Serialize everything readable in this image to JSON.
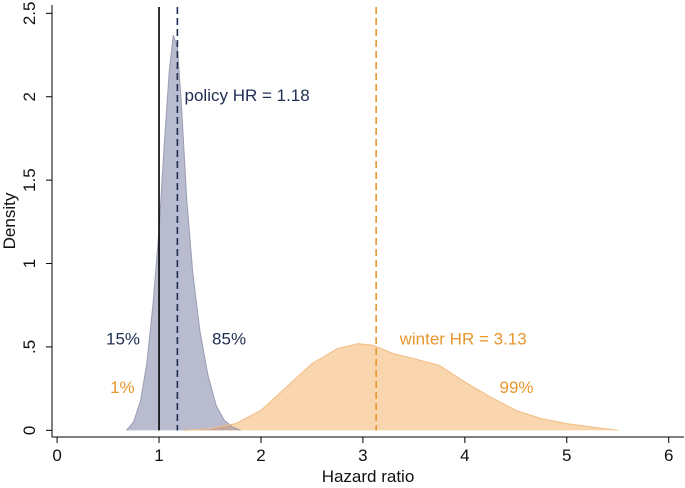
{
  "chart_data": {
    "type": "area",
    "xlabel": "Hazard ratio",
    "ylabel": "Density",
    "xlim": [
      -0.05,
      6.15
    ],
    "ylim": [
      -0.04,
      2.55
    ],
    "x_ticks": [
      {
        "value": 0,
        "label": "0"
      },
      {
        "value": 1,
        "label": "1"
      },
      {
        "value": 2,
        "label": "2"
      },
      {
        "value": 3,
        "label": "3"
      },
      {
        "value": 4,
        "label": "4"
      },
      {
        "value": 5,
        "label": "5"
      },
      {
        "value": 6,
        "label": "6"
      }
    ],
    "y_ticks": [
      {
        "value": 0,
        "label": "0"
      },
      {
        "value": 0.5,
        "label": ".5"
      },
      {
        "value": 1,
        "label": "1"
      },
      {
        "value": 1.5,
        "label": "1.5"
      },
      {
        "value": 2,
        "label": "2"
      },
      {
        "value": 2.5,
        "label": "2.5"
      }
    ],
    "grid": false,
    "colors": {
      "policy_fill": "#b9bccf",
      "policy_line": "#1f2d52",
      "winter_fill": "#f9d6ad",
      "winter_line": "#e8962e",
      "overlap_fill": "#c4a8a0"
    },
    "series": [
      {
        "key": "policy",
        "x": [
          0.68,
          0.75,
          0.82,
          0.88,
          0.94,
          1.0,
          1.05,
          1.1,
          1.14,
          1.18,
          1.22,
          1.27,
          1.33,
          1.4,
          1.48,
          1.56,
          1.64,
          1.72,
          1.8
        ],
        "y": [
          0.0,
          0.05,
          0.18,
          0.4,
          0.75,
          1.2,
          1.7,
          2.15,
          2.37,
          2.3,
          1.95,
          1.4,
          0.95,
          0.6,
          0.33,
          0.15,
          0.06,
          0.02,
          0.0
        ]
      },
      {
        "key": "winter",
        "x": [
          1.25,
          1.5,
          1.75,
          2.0,
          2.25,
          2.5,
          2.75,
          2.95,
          3.1,
          3.3,
          3.5,
          3.75,
          4.0,
          4.25,
          4.5,
          4.75,
          5.0,
          5.25,
          5.5
        ],
        "y": [
          0.0,
          0.01,
          0.04,
          0.12,
          0.26,
          0.4,
          0.49,
          0.52,
          0.51,
          0.46,
          0.43,
          0.39,
          0.29,
          0.2,
          0.12,
          0.07,
          0.04,
          0.02,
          0.0
        ]
      }
    ],
    "reference_lines": [
      {
        "key": "null",
        "x": 1.0,
        "style": "solid",
        "color": "#000000"
      },
      {
        "key": "policy_hr",
        "x": 1.18,
        "style": "dashed",
        "color": "#1f2d52"
      },
      {
        "key": "winter_hr",
        "x": 3.13,
        "style": "dashed",
        "color": "#e8962e"
      }
    ],
    "annotations": [
      {
        "key": "policy_hr_label",
        "text": "policy HR = 1.18",
        "x": 1.25,
        "y": 2.0,
        "color": "#1f2d52",
        "anchor": "start"
      },
      {
        "key": "policy_left",
        "text": "15%",
        "x": 0.48,
        "y": 0.54,
        "color": "#1f2d52",
        "anchor": "start"
      },
      {
        "key": "policy_right",
        "text": "85%",
        "x": 1.52,
        "y": 0.54,
        "color": "#1f2d52",
        "anchor": "start"
      },
      {
        "key": "winter_hr_label",
        "text": "winter HR = 3.13",
        "x": 3.36,
        "y": 0.54,
        "color": "#e8962e",
        "anchor": "start"
      },
      {
        "key": "winter_left",
        "text": "1%",
        "x": 0.52,
        "y": 0.25,
        "color": "#e8962e",
        "anchor": "start"
      },
      {
        "key": "winter_right",
        "text": "99%",
        "x": 4.34,
        "y": 0.25,
        "color": "#e8962e",
        "anchor": "start"
      }
    ]
  }
}
